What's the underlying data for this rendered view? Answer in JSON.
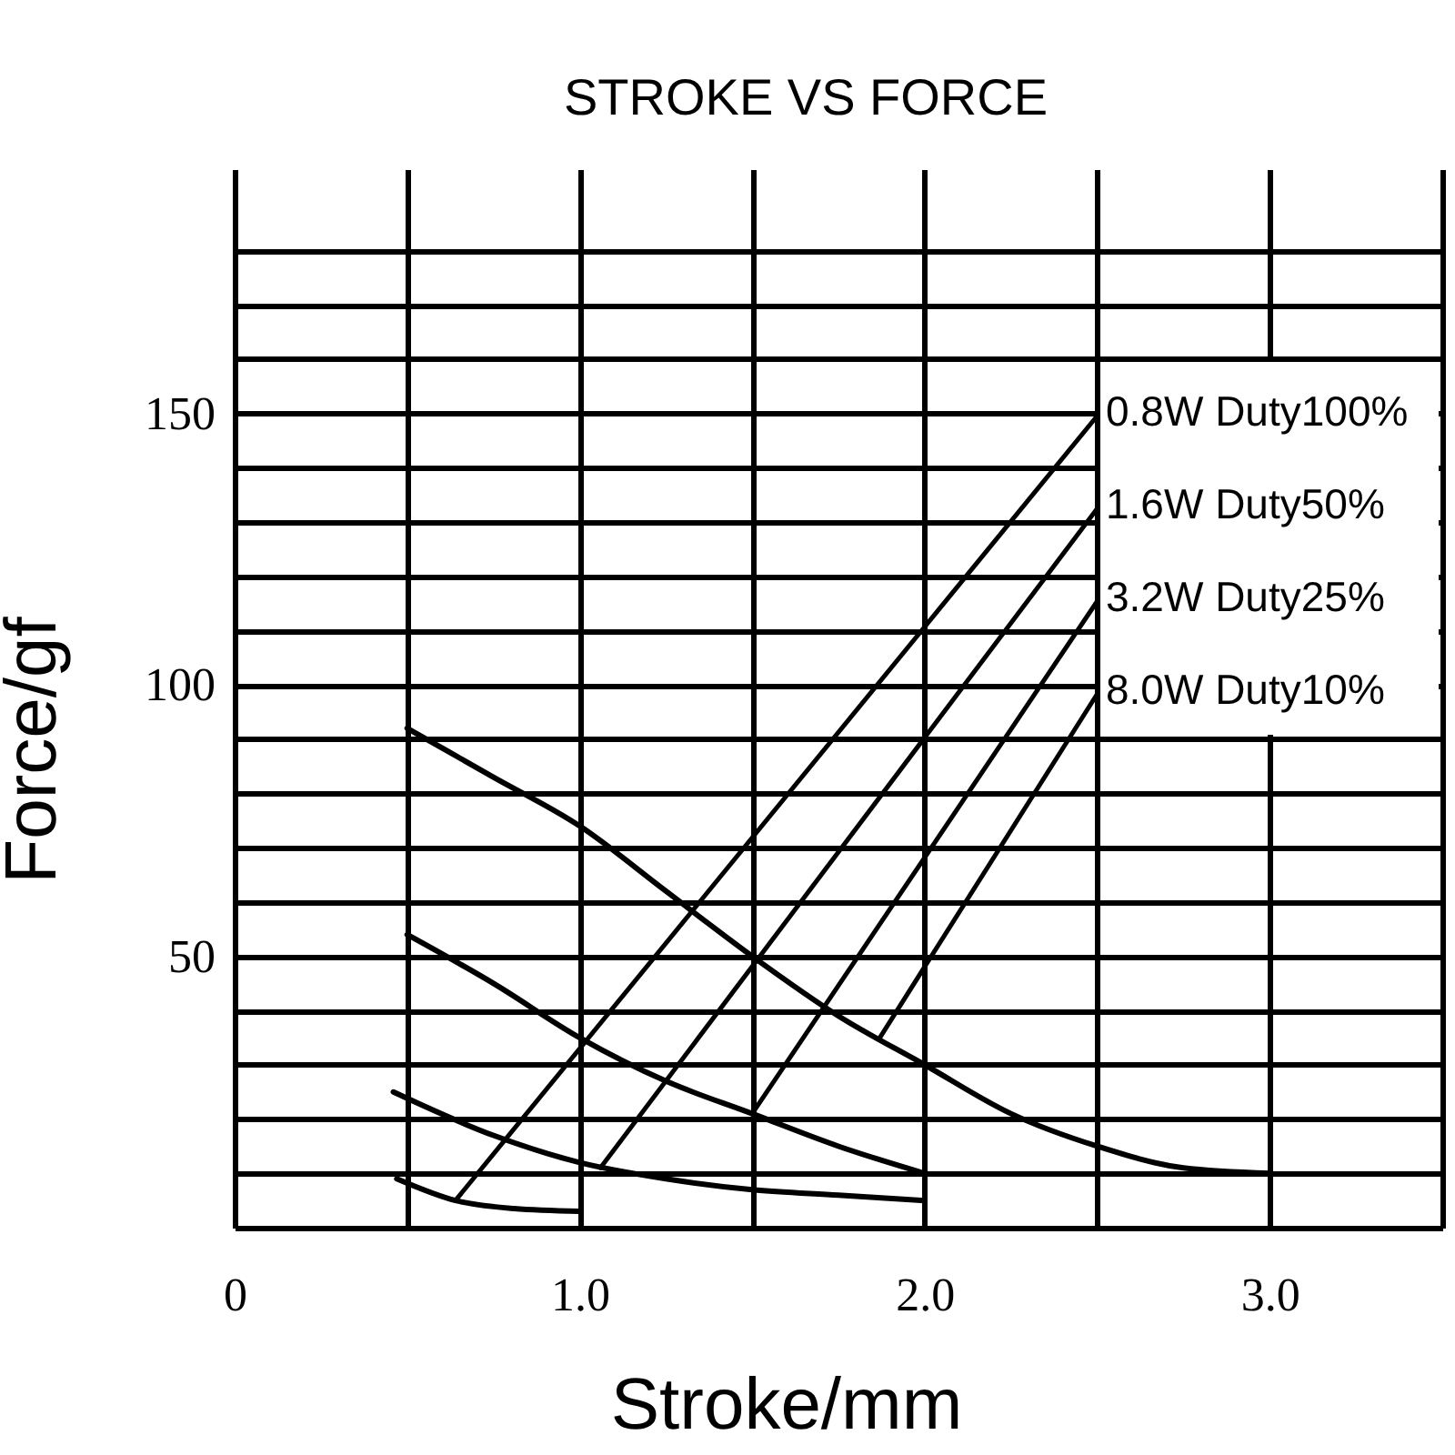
{
  "chart_data": {
    "type": "line",
    "title": "STROKE VS FORCE",
    "xlabel": "Stroke/mm",
    "ylabel": "Force/gf",
    "series": [
      {
        "color": "#000000",
        "x": [
          0.47,
          0.64,
          0.81,
          1.0
        ],
        "values": [
          9,
          5,
          3.5,
          3
        ]
      },
      {
        "color": "#000000",
        "x": [
          0.46,
          0.75,
          1.0,
          1.25,
          1.5,
          1.75,
          2.0
        ],
        "values": [
          25,
          17,
          12,
          9,
          7,
          6,
          5
        ]
      },
      {
        "color": "#000000",
        "x": [
          0.5,
          0.75,
          1.0,
          1.25,
          1.5,
          1.75,
          2.0
        ],
        "values": [
          54,
          45,
          35,
          27,
          21,
          15,
          10
        ]
      },
      {
        "color": "#000000",
        "x": [
          0.5,
          0.75,
          1.0,
          1.25,
          1.5,
          1.75,
          2.0,
          2.25,
          2.5,
          2.75,
          3.0
        ],
        "values": [
          92,
          83,
          74,
          62,
          50,
          39,
          30,
          21,
          15,
          11,
          10
        ]
      }
    ],
    "annotations": [
      {
        "text": "0.8W Duty100%",
        "x": 0.64,
        "y": 5
      },
      {
        "text": "1.6W Duty50%",
        "x": 1.06,
        "y": 11
      },
      {
        "text": "3.2W Duty25%",
        "x": 1.5,
        "y": 21
      },
      {
        "text": "8.0W Duty10%",
        "x": 1.87,
        "y": 35
      }
    ],
    "xlim": [
      0,
      3.5
    ],
    "ylim": [
      0,
      195
    ],
    "xticks": [
      0,
      {
        "value": 0.5,
        "label": null
      },
      {
        "value": 1,
        "label": "1.0"
      },
      {
        "value": 1.5,
        "label": null
      },
      {
        "value": 2,
        "label": "2.0"
      },
      {
        "value": 2.5,
        "label": null
      },
      {
        "value": 3,
        "label": "3.0"
      },
      {
        "value": 3.5,
        "label": null
      }
    ],
    "yticks": [
      {
        "value": 0,
        "label": null
      },
      {
        "value": 10,
        "label": null
      },
      {
        "value": 20,
        "label": null
      },
      {
        "value": 30,
        "label": null
      },
      {
        "value": 40,
        "label": null
      },
      50,
      {
        "value": 60,
        "label": null
      },
      {
        "value": 70,
        "label": null
      },
      {
        "value": 80,
        "label": null
      },
      {
        "value": 90,
        "label": null
      },
      100,
      {
        "value": 110,
        "label": null
      },
      {
        "value": 120,
        "label": null
      },
      {
        "value": 130,
        "label": null
      },
      {
        "value": 140,
        "label": null
      },
      150,
      {
        "value": 160,
        "label": null
      },
      {
        "value": 170,
        "label": null
      },
      {
        "value": 180,
        "label": null
      }
    ],
    "grid": true
  }
}
